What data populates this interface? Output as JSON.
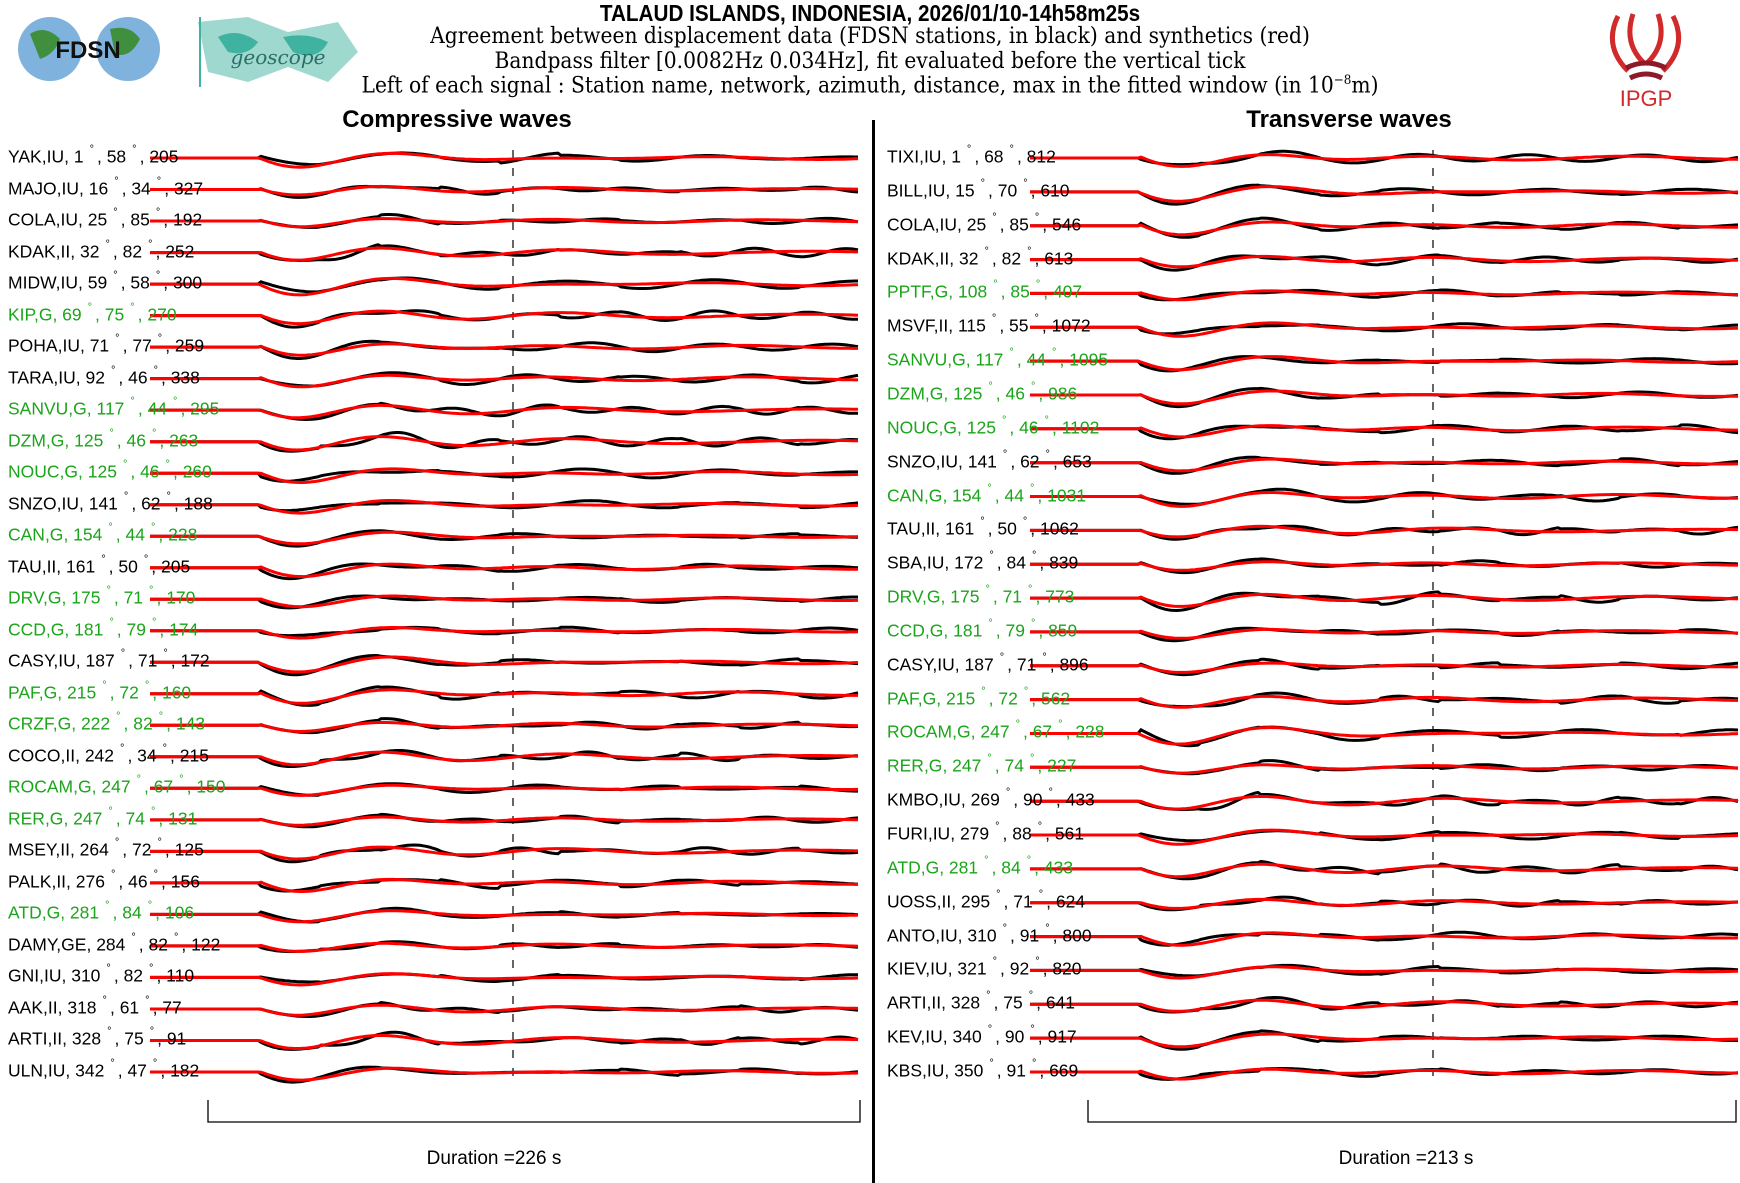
{
  "header": {
    "title": "TALAUD ISLANDS, INDONESIA, 2026/01/10-14h58m25s",
    "line1": "Agreement between displacement data (FDSN stations, in black) and synthetics (red)",
    "line2": "Bandpass filter [0.0082Hz 0.034Hz], fit evaluated before the vertical tick",
    "line3_pre": "Left of each signal : Station name, network, azimuth, distance, max in the fitted window (in 10",
    "line3_exp": "−8",
    "line3_post": "m)"
  },
  "logos": {
    "fdsn": "FDSN",
    "geoscope": "geoscope",
    "ipgp": "IPGP"
  },
  "colors": {
    "data": "#000000",
    "synthetic": "#ff0000",
    "geoscope_station": "#1aa51a"
  },
  "compressive": {
    "title": "Compressive waves",
    "duration": "Duration =226 s",
    "stations": [
      {
        "name": "YAK,IU",
        "az": "1",
        "dist": "58",
        "amp": "205",
        "g": false
      },
      {
        "name": "MAJO,IU",
        "az": "16",
        "dist": "34",
        "amp": "327",
        "g": false
      },
      {
        "name": "COLA,IU",
        "az": "25",
        "dist": "85",
        "amp": "192",
        "g": false
      },
      {
        "name": "KDAK,II",
        "az": "32",
        "dist": "82",
        "amp": "252",
        "g": false
      },
      {
        "name": "MIDW,IU",
        "az": "59",
        "dist": "58",
        "amp": "300",
        "g": false
      },
      {
        "name": "KIP,G",
        "az": "69",
        "dist": "75",
        "amp": "270",
        "g": true
      },
      {
        "name": "POHA,IU",
        "az": "71",
        "dist": "77",
        "amp": "259",
        "g": false
      },
      {
        "name": "TARA,IU",
        "az": "92",
        "dist": "46",
        "amp": "338",
        "g": false
      },
      {
        "name": "SANVU,G",
        "az": "117",
        "dist": "44",
        "amp": "295",
        "g": true
      },
      {
        "name": "DZM,G",
        "az": "125",
        "dist": "46",
        "amp": "263",
        "g": true
      },
      {
        "name": "NOUC,G",
        "az": "125",
        "dist": "46",
        "amp": "260",
        "g": true
      },
      {
        "name": "SNZO,IU",
        "az": "141",
        "dist": "62",
        "amp": "188",
        "g": false
      },
      {
        "name": "CAN,G",
        "az": "154",
        "dist": "44",
        "amp": "228",
        "g": true
      },
      {
        "name": "TAU,II",
        "az": "161",
        "dist": "50",
        "amp": "205",
        "g": false
      },
      {
        "name": "DRV,G",
        "az": "175",
        "dist": "71",
        "amp": "170",
        "g": true
      },
      {
        "name": "CCD,G",
        "az": "181",
        "dist": "79",
        "amp": "174",
        "g": true
      },
      {
        "name": "CASY,IU",
        "az": "187",
        "dist": "71",
        "amp": "172",
        "g": false
      },
      {
        "name": "PAF,G",
        "az": "215",
        "dist": "72",
        "amp": "160",
        "g": true
      },
      {
        "name": "CRZF,G",
        "az": "222",
        "dist": "82",
        "amp": "143",
        "g": true
      },
      {
        "name": "COCO,II",
        "az": "242",
        "dist": "34",
        "amp": "215",
        "g": false
      },
      {
        "name": "ROCAM,G",
        "az": "247",
        "dist": "67",
        "amp": "150",
        "g": true
      },
      {
        "name": "RER,G",
        "az": "247",
        "dist": "74",
        "amp": "131",
        "g": true
      },
      {
        "name": "MSEY,II",
        "az": "264",
        "dist": "72",
        "amp": "125",
        "g": false
      },
      {
        "name": "PALK,II",
        "az": "276",
        "dist": "46",
        "amp": "156",
        "g": false
      },
      {
        "name": "ATD,G",
        "az": "281",
        "dist": "84",
        "amp": "106",
        "g": true
      },
      {
        "name": "DAMY,GE",
        "az": "284",
        "dist": "82",
        "amp": "122",
        "g": false
      },
      {
        "name": "GNI,IU",
        "az": "310",
        "dist": "82",
        "amp": "110",
        "g": false
      },
      {
        "name": "AAK,II",
        "az": "318",
        "dist": "61",
        "amp": "77",
        "g": false
      },
      {
        "name": "ARTI,II",
        "az": "328",
        "dist": "75",
        "amp": "91",
        "g": false
      },
      {
        "name": "ULN,IU",
        "az": "342",
        "dist": "47",
        "amp": "182",
        "g": false
      }
    ]
  },
  "transverse": {
    "title": "Transverse waves",
    "duration": "Duration =213 s",
    "stations": [
      {
        "name": "TIXI,IU",
        "az": "1",
        "dist": "68",
        "amp": "812",
        "g": false
      },
      {
        "name": "BILL,IU",
        "az": "15",
        "dist": "70",
        "amp": "610",
        "g": false
      },
      {
        "name": "COLA,IU",
        "az": "25",
        "dist": "85",
        "amp": "546",
        "g": false
      },
      {
        "name": "KDAK,II",
        "az": "32",
        "dist": "82",
        "amp": "613",
        "g": false
      },
      {
        "name": "PPTF,G",
        "az": "108",
        "dist": "85",
        "amp": "407",
        "g": true
      },
      {
        "name": "MSVF,II",
        "az": "115",
        "dist": "55",
        "amp": "1072",
        "g": false
      },
      {
        "name": "SANVU,G",
        "az": "117",
        "dist": "44",
        "amp": "1095",
        "g": true
      },
      {
        "name": "DZM,G",
        "az": "125",
        "dist": "46",
        "amp": "986",
        "g": true
      },
      {
        "name": "NOUC,G",
        "az": "125",
        "dist": "46",
        "amp": "1102",
        "g": true
      },
      {
        "name": "SNZO,IU",
        "az": "141",
        "dist": "62",
        "amp": "653",
        "g": false
      },
      {
        "name": "CAN,G",
        "az": "154",
        "dist": "44",
        "amp": "1031",
        "g": true
      },
      {
        "name": "TAU,II",
        "az": "161",
        "dist": "50",
        "amp": "1062",
        "g": false
      },
      {
        "name": "SBA,IU",
        "az": "172",
        "dist": "84",
        "amp": "839",
        "g": false
      },
      {
        "name": "DRV,G",
        "az": "175",
        "dist": "71",
        "amp": "773",
        "g": true
      },
      {
        "name": "CCD,G",
        "az": "181",
        "dist": "79",
        "amp": "859",
        "g": true
      },
      {
        "name": "CASY,IU",
        "az": "187",
        "dist": "71",
        "amp": "896",
        "g": false
      },
      {
        "name": "PAF,G",
        "az": "215",
        "dist": "72",
        "amp": "562",
        "g": true
      },
      {
        "name": "ROCAM,G",
        "az": "247",
        "dist": "67",
        "amp": "228",
        "g": true
      },
      {
        "name": "RER,G",
        "az": "247",
        "dist": "74",
        "amp": "227",
        "g": true
      },
      {
        "name": "KMBO,IU",
        "az": "269",
        "dist": "90",
        "amp": "433",
        "g": false
      },
      {
        "name": "FURI,IU",
        "az": "279",
        "dist": "88",
        "amp": "561",
        "g": false
      },
      {
        "name": "ATD,G",
        "az": "281",
        "dist": "84",
        "amp": "433",
        "g": true
      },
      {
        "name": "UOSS,II",
        "az": "295",
        "dist": "71",
        "amp": "624",
        "g": false
      },
      {
        "name": "ANTO,IU",
        "az": "310",
        "dist": "91",
        "amp": "800",
        "g": false
      },
      {
        "name": "KIEV,IU",
        "az": "321",
        "dist": "92",
        "amp": "820",
        "g": false
      },
      {
        "name": "ARTI,II",
        "az": "328",
        "dist": "75",
        "amp": "641",
        "g": false
      },
      {
        "name": "KEV,IU",
        "az": "340",
        "dist": "90",
        "amp": "917",
        "g": false
      },
      {
        "name": "KBS,IU",
        "az": "350",
        "dist": "91",
        "amp": "669",
        "g": false
      }
    ]
  }
}
